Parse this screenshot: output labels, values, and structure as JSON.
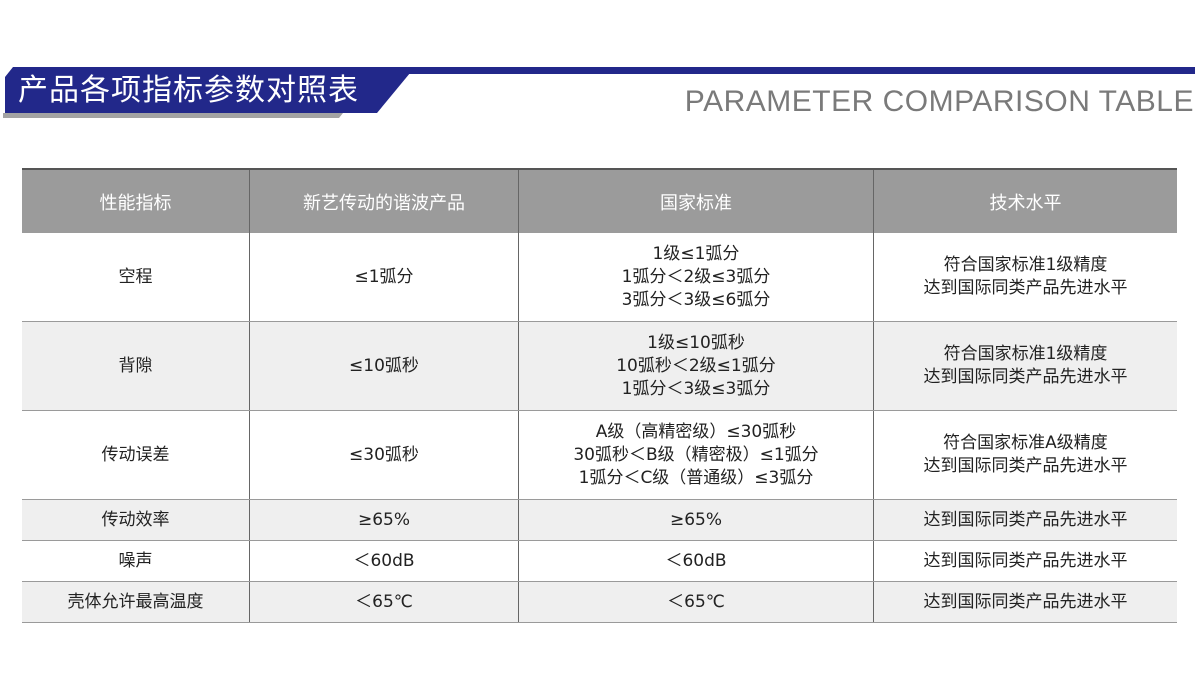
{
  "header": {
    "title_cn": "产品各项指标参数对照表",
    "title_en": "PARAMETER COMPARISON TABLE",
    "accent_color": "#22288a"
  },
  "table": {
    "columns": [
      "性能指标",
      "新艺传动的谐波产品",
      "国家标准",
      "技术水平"
    ],
    "rows": [
      {
        "metric": "空程",
        "product": "≤1弧分",
        "standard": [
          "1级≤1弧分",
          "1弧分＜2级≤3弧分",
          "3弧分＜3级≤6弧分"
        ],
        "level": [
          "符合国家标准1级精度",
          "达到国际同类产品先进水平"
        ]
      },
      {
        "metric": "背隙",
        "product": "≤10弧秒",
        "standard": [
          "1级≤10弧秒",
          "10弧秒＜2级≤1弧分",
          "1弧分＜3级≤3弧分"
        ],
        "level": [
          "符合国家标准1级精度",
          "达到国际同类产品先进水平"
        ]
      },
      {
        "metric": "传动误差",
        "product": "≤30弧秒",
        "standard": [
          "A级（高精密级）≤30弧秒",
          "30弧秒＜B级（精密极）≤1弧分",
          "1弧分＜C级（普通级）≤3弧分"
        ],
        "level": [
          "符合国家标准A级精度",
          "达到国际同类产品先进水平"
        ]
      },
      {
        "metric": "传动效率",
        "product": "≥65%",
        "standard": [
          "≥65%"
        ],
        "level": [
          "达到国际同类产品先进水平"
        ]
      },
      {
        "metric": "噪声",
        "product": "＜60dB",
        "standard": [
          "＜60dB"
        ],
        "level": [
          "达到国际同类产品先进水平"
        ]
      },
      {
        "metric": "壳体允许最高温度",
        "product": "＜65℃",
        "standard": [
          "＜65℃"
        ],
        "level": [
          "达到国际同类产品先进水平"
        ]
      }
    ]
  }
}
